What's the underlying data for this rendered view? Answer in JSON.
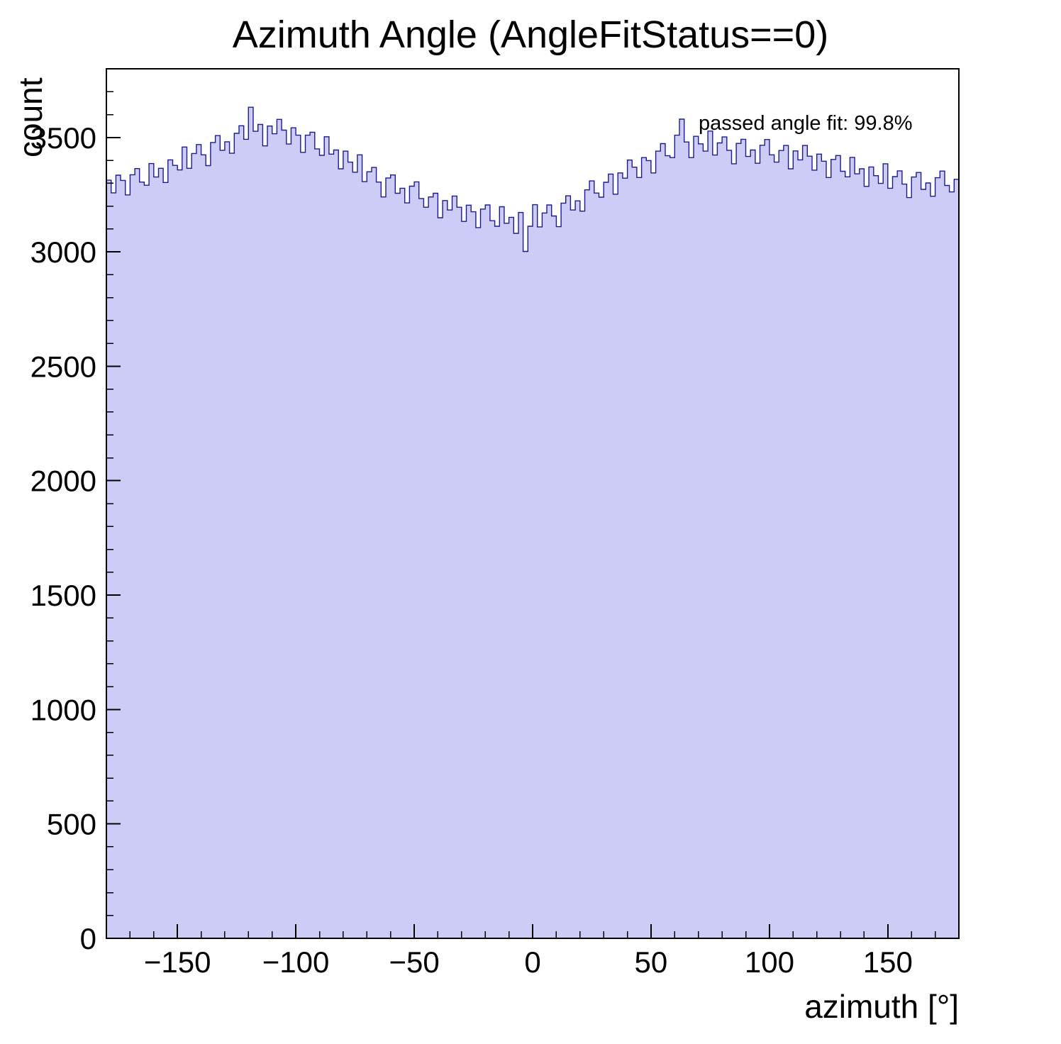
{
  "chart_data": {
    "type": "bar",
    "style": "filled-step-histogram",
    "title": "Azimuth Angle (AngleFitStatus==0)",
    "xlabel": "azimuth [°]",
    "ylabel": "count",
    "annotation": "passed angle fit: 99.8%",
    "xlim": [
      -180,
      180
    ],
    "ylim": [
      0,
      3800
    ],
    "bin_start": -180,
    "bin_width": 2,
    "x_ticks": [
      -150,
      -100,
      -50,
      0,
      50,
      100,
      150
    ],
    "x_tick_labels": [
      "−150",
      "−100",
      "−50",
      "0",
      "50",
      "100",
      "150"
    ],
    "x_minor_step": 10,
    "y_ticks": [
      0,
      500,
      1000,
      1500,
      2000,
      2500,
      3000,
      3500
    ],
    "y_tick_labels": [
      "0",
      "500",
      "1000",
      "1500",
      "2000",
      "2500",
      "3000",
      "3500"
    ],
    "y_minor_step": 100,
    "grid": false,
    "legend": "none",
    "colors": {
      "fill": "#ccccf7",
      "line": "#1c1c8f",
      "axis": "#000000"
    },
    "values": [
      3313,
      3258,
      3335,
      3312,
      3249,
      3337,
      3364,
      3305,
      3291,
      3386,
      3327,
      3365,
      3303,
      3402,
      3378,
      3358,
      3458,
      3365,
      3430,
      3469,
      3424,
      3377,
      3478,
      3508,
      3444,
      3481,
      3431,
      3518,
      3551,
      3492,
      3632,
      3527,
      3557,
      3463,
      3550,
      3516,
      3579,
      3532,
      3471,
      3542,
      3510,
      3435,
      3510,
      3523,
      3450,
      3422,
      3503,
      3427,
      3445,
      3363,
      3440,
      3392,
      3348,
      3424,
      3307,
      3350,
      3369,
      3305,
      3240,
      3323,
      3336,
      3256,
      3278,
      3214,
      3287,
      3306,
      3233,
      3195,
      3240,
      3256,
      3149,
      3224,
      3183,
      3244,
      3195,
      3133,
      3204,
      3175,
      3106,
      3187,
      3205,
      3136,
      3112,
      3197,
      3125,
      3151,
      3081,
      3172,
      3002,
      3112,
      3206,
      3109,
      3170,
      3205,
      3157,
      3110,
      3213,
      3245,
      3183,
      3223,
      3178,
      3271,
      3310,
      3257,
      3239,
      3304,
      3340,
      3252,
      3345,
      3322,
      3401,
      3370,
      3325,
      3412,
      3399,
      3345,
      3440,
      3473,
      3420,
      3412,
      3510,
      3580,
      3480,
      3412,
      3505,
      3472,
      3440,
      3528,
      3423,
      3476,
      3502,
      3444,
      3385,
      3474,
      3492,
      3417,
      3445,
      3387,
      3466,
      3491,
      3424,
      3392,
      3443,
      3465,
      3363,
      3441,
      3402,
      3465,
      3418,
      3357,
      3427,
      3396,
      3325,
      3404,
      3421,
      3352,
      3328,
      3413,
      3341,
      3363,
      3286,
      3371,
      3333,
      3299,
      3385,
      3278,
      3329,
      3354,
      3296,
      3237,
      3327,
      3347,
      3273,
      3301,
      3243,
      3324,
      3353,
      3290,
      3262,
      3317
    ]
  }
}
